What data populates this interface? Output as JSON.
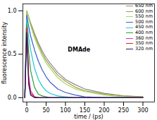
{
  "chart_data": {
    "type": "line",
    "x_label": "time / (ps)",
    "y_label": "fluorescence intensity",
    "annotations": [
      "DMAde"
    ],
    "x": [
      -5,
      0,
      5,
      10,
      20,
      30,
      40,
      50,
      60,
      80,
      100,
      125,
      150,
      200,
      250,
      300
    ],
    "series": [
      {
        "name": "650 nm",
        "color": "#8c8c8c",
        "values": [
          0,
          1.0,
          0.93,
          0.86,
          0.74,
          0.63,
          0.54,
          0.46,
          0.4,
          0.29,
          0.21,
          0.15,
          0.1,
          0.05,
          0.02,
          0.01
        ]
      },
      {
        "name": "600 nm",
        "color": "#a89a3c",
        "values": [
          0,
          1.0,
          0.92,
          0.85,
          0.72,
          0.61,
          0.51,
          0.43,
          0.37,
          0.26,
          0.19,
          0.12,
          0.08,
          0.04,
          0.02,
          0.01
        ]
      },
      {
        "name": "550 nm",
        "color": "#9fd86a",
        "values": [
          0,
          1.0,
          0.91,
          0.83,
          0.69,
          0.58,
          0.48,
          0.4,
          0.34,
          0.23,
          0.16,
          0.1,
          0.07,
          0.03,
          0.01,
          0
        ]
      },
      {
        "name": "500 nm",
        "color": "#3a5fcd",
        "values": [
          0,
          0.95,
          0.82,
          0.71,
          0.55,
          0.42,
          0.32,
          0.24,
          0.18,
          0.1,
          0.06,
          0.03,
          0.01,
          0,
          0,
          0
        ]
      },
      {
        "name": "450 nm",
        "color": "#22c6d6",
        "values": [
          0,
          0.9,
          0.7,
          0.55,
          0.34,
          0.21,
          0.13,
          0.08,
          0.05,
          0.02,
          0.01,
          0,
          0,
          0,
          0,
          0
        ]
      },
      {
        "name": "400 nm",
        "color": "#2ca02c",
        "values": [
          0,
          0.85,
          0.52,
          0.31,
          0.12,
          0.04,
          0.02,
          0.01,
          0,
          0,
          0,
          0,
          0,
          0,
          0,
          0
        ]
      },
      {
        "name": "360 nm",
        "color": "#d62bd6",
        "values": [
          0,
          0.8,
          0.25,
          0.08,
          0.01,
          0,
          0,
          0,
          0,
          0,
          0,
          0,
          0,
          0,
          0,
          0
        ]
      },
      {
        "name": "350 nm",
        "color": "#e02020",
        "values": [
          0,
          0.8,
          0.2,
          0.05,
          0.01,
          0,
          0,
          0,
          0,
          0,
          0,
          0,
          0,
          0,
          0,
          0
        ]
      },
      {
        "name": "320 nm",
        "color": "#1a1a5e",
        "values": [
          0,
          0.75,
          0.15,
          0.03,
          0,
          0,
          0,
          0,
          0,
          0,
          0,
          0,
          0,
          0,
          0,
          0
        ]
      }
    ],
    "xlim": [
      -10,
      330
    ],
    "xticks": [
      0,
      50,
      100,
      150,
      200,
      250,
      300
    ],
    "ylim": [
      -0.05,
      1.08
    ],
    "yticks": [
      {
        "value": 0,
        "label": "0.0"
      },
      {
        "value": 0.5,
        "label": "0.5"
      },
      {
        "value": 1,
        "label": "1.0"
      }
    ],
    "grid": false,
    "legend": "top-right"
  }
}
